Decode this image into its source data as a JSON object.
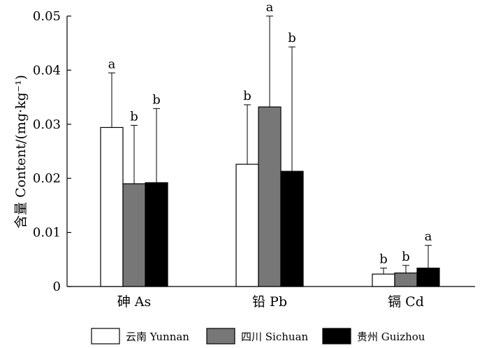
{
  "chart_data": {
    "type": "bar",
    "title": "",
    "xlabel": "",
    "ylabel": "含量 Content/(mg·kg⁻¹)",
    "ylim": [
      0,
      0.05
    ],
    "yticks": [
      0,
      0.01,
      0.02,
      0.03,
      0.04,
      0.05
    ],
    "ytick_labels": [
      "0",
      "0.01",
      "0.02",
      "0.03",
      "0.04",
      "0.05"
    ],
    "categories": [
      "砷 As",
      "铅 Pb",
      "镉 Cd"
    ],
    "series": [
      {
        "name": "云南 Yunnan",
        "color": "#ffffff",
        "values": [
          0.0294,
          0.0226,
          0.0023
        ],
        "errors": [
          0.0101,
          0.011,
          0.0011
        ],
        "labels": [
          "a",
          "b",
          "b"
        ]
      },
      {
        "name": "四川 Sichuan",
        "color": "#777777",
        "values": [
          0.019,
          0.0332,
          0.0025
        ],
        "errors": [
          0.0108,
          0.0168,
          0.0014
        ],
        "labels": [
          "b",
          "a",
          "b"
        ]
      },
      {
        "name": "贵州 Guizhou",
        "color": "#000000",
        "values": [
          0.0192,
          0.0213,
          0.0034
        ],
        "errors": [
          0.0137,
          0.023,
          0.0042
        ],
        "labels": [
          "b",
          "b",
          "a"
        ]
      }
    ],
    "legend": "bottom"
  }
}
